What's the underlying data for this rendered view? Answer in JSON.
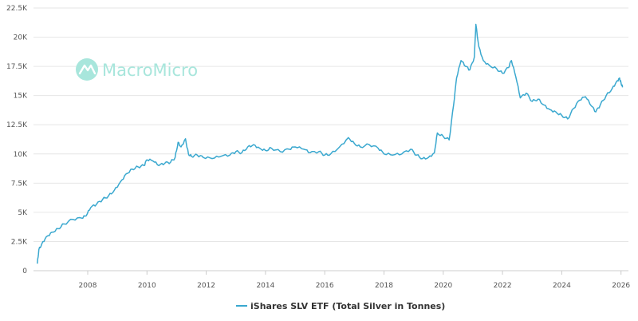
{
  "chart_data": {
    "type": "line",
    "title": "",
    "xlabel": "",
    "ylabel": "",
    "xlim": [
      2006.3,
      2026.2
    ],
    "ylim": [
      0,
      22500
    ],
    "x_ticks": [
      "2008",
      "2010",
      "2012",
      "2014",
      "2016",
      "2018",
      "2020",
      "2022",
      "2024",
      "2026"
    ],
    "y_ticks": [
      "0",
      "2.5K",
      "5K",
      "7.5K",
      "10K",
      "12.5K",
      "15K",
      "17.5K",
      "20K",
      "22.5K"
    ],
    "grid": "horizontal",
    "legend_position": "bottom-center",
    "series": [
      {
        "name": "iShares SLV ETF (Total Silver in Tonnes)",
        "color": "#3aa8cf",
        "points": [
          [
            2006.3,
            600
          ],
          [
            2006.35,
            1800
          ],
          [
            2006.45,
            2300
          ],
          [
            2006.6,
            2900
          ],
          [
            2006.8,
            3300
          ],
          [
            2007.0,
            3600
          ],
          [
            2007.2,
            4000
          ],
          [
            2007.5,
            4400
          ],
          [
            2007.8,
            4500
          ],
          [
            2007.95,
            4700
          ],
          [
            2008.1,
            5400
          ],
          [
            2008.3,
            5700
          ],
          [
            2008.5,
            6100
          ],
          [
            2008.7,
            6400
          ],
          [
            2008.9,
            6900
          ],
          [
            2009.1,
            7600
          ],
          [
            2009.3,
            8300
          ],
          [
            2009.5,
            8700
          ],
          [
            2009.7,
            8900
          ],
          [
            2009.9,
            9000
          ],
          [
            2010.0,
            9500
          ],
          [
            2010.2,
            9400
          ],
          [
            2010.4,
            9000
          ],
          [
            2010.6,
            9200
          ],
          [
            2010.8,
            9300
          ],
          [
            2010.95,
            9700
          ],
          [
            2011.05,
            11000
          ],
          [
            2011.15,
            10600
          ],
          [
            2011.3,
            11300
          ],
          [
            2011.4,
            10000
          ],
          [
            2011.5,
            9800
          ],
          [
            2011.7,
            9900
          ],
          [
            2011.9,
            9700
          ],
          [
            2012.2,
            9600
          ],
          [
            2012.5,
            9800
          ],
          [
            2012.8,
            9900
          ],
          [
            2013.0,
            10200
          ],
          [
            2013.2,
            10100
          ],
          [
            2013.4,
            10600
          ],
          [
            2013.6,
            10800
          ],
          [
            2013.8,
            10500
          ],
          [
            2014.0,
            10300
          ],
          [
            2014.2,
            10500
          ],
          [
            2014.5,
            10200
          ],
          [
            2014.8,
            10400
          ],
          [
            2015.0,
            10600
          ],
          [
            2015.3,
            10400
          ],
          [
            2015.5,
            10100
          ],
          [
            2015.8,
            10200
          ],
          [
            2016.0,
            9900
          ],
          [
            2016.2,
            10000
          ],
          [
            2016.5,
            10600
          ],
          [
            2016.8,
            11400
          ],
          [
            2017.0,
            10900
          ],
          [
            2017.2,
            10600
          ],
          [
            2017.5,
            10800
          ],
          [
            2017.8,
            10500
          ],
          [
            2018.0,
            10000
          ],
          [
            2018.3,
            9900
          ],
          [
            2018.6,
            10000
          ],
          [
            2018.9,
            10400
          ],
          [
            2019.1,
            9900
          ],
          [
            2019.3,
            9600
          ],
          [
            2019.5,
            9700
          ],
          [
            2019.7,
            10100
          ],
          [
            2019.8,
            11800
          ],
          [
            2020.0,
            11500
          ],
          [
            2020.2,
            11200
          ],
          [
            2020.35,
            14200
          ],
          [
            2020.45,
            16500
          ],
          [
            2020.6,
            18000
          ],
          [
            2020.75,
            17500
          ],
          [
            2020.9,
            17200
          ],
          [
            2021.05,
            18300
          ],
          [
            2021.1,
            21100
          ],
          [
            2021.2,
            19200
          ],
          [
            2021.35,
            18000
          ],
          [
            2021.55,
            17600
          ],
          [
            2021.8,
            17300
          ],
          [
            2022.0,
            16900
          ],
          [
            2022.2,
            17400
          ],
          [
            2022.3,
            18000
          ],
          [
            2022.45,
            16600
          ],
          [
            2022.6,
            14800
          ],
          [
            2022.8,
            15200
          ],
          [
            2023.0,
            14500
          ],
          [
            2023.2,
            14700
          ],
          [
            2023.4,
            14200
          ],
          [
            2023.6,
            13800
          ],
          [
            2023.8,
            13600
          ],
          [
            2024.0,
            13300
          ],
          [
            2024.2,
            13000
          ],
          [
            2024.4,
            13900
          ],
          [
            2024.6,
            14600
          ],
          [
            2024.8,
            14900
          ],
          [
            2025.0,
            14100
          ],
          [
            2025.15,
            13600
          ],
          [
            2025.3,
            14200
          ],
          [
            2025.5,
            15000
          ],
          [
            2025.7,
            15600
          ],
          [
            2025.85,
            16200
          ],
          [
            2025.95,
            16500
          ],
          [
            2026.0,
            16100
          ],
          [
            2026.05,
            15700
          ]
        ]
      }
    ]
  },
  "watermark": {
    "brand": "MacroMicro",
    "icon": "macromicro-logo-icon"
  }
}
